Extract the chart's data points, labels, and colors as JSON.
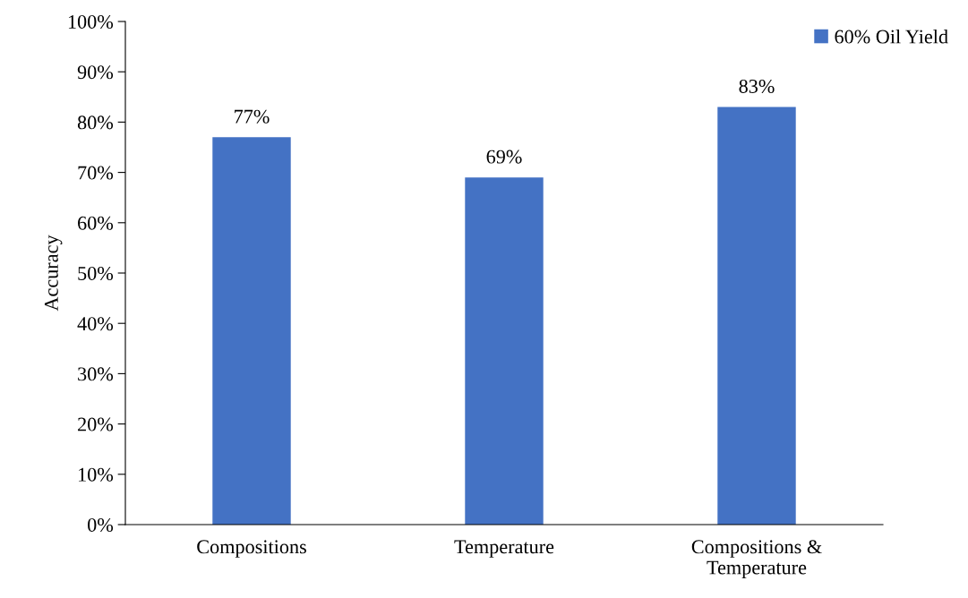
{
  "chart_data": {
    "type": "bar",
    "ylabel": "Accuracy",
    "categories": [
      "Compositions",
      "Temperature",
      "Compositions &\nTemperature"
    ],
    "series": [
      {
        "name": "60% Oil Yield",
        "color": "#4472c4",
        "values": [
          77,
          69,
          83
        ],
        "value_labels": [
          "77%",
          "69%",
          "83%"
        ]
      }
    ],
    "ylim": [
      0,
      100
    ],
    "yticks": [
      {
        "value": 0,
        "label": "0%"
      },
      {
        "value": 10,
        "label": "10%"
      },
      {
        "value": 20,
        "label": "20%"
      },
      {
        "value": 30,
        "label": "30%"
      },
      {
        "value": 40,
        "label": "40%"
      },
      {
        "value": 50,
        "label": "50%"
      },
      {
        "value": 60,
        "label": "60%"
      },
      {
        "value": 70,
        "label": "70%"
      },
      {
        "value": 80,
        "label": "80%"
      },
      {
        "value": 90,
        "label": "90%"
      },
      {
        "value": 100,
        "label": "100%"
      }
    ],
    "grid": false,
    "legend": "top right"
  }
}
